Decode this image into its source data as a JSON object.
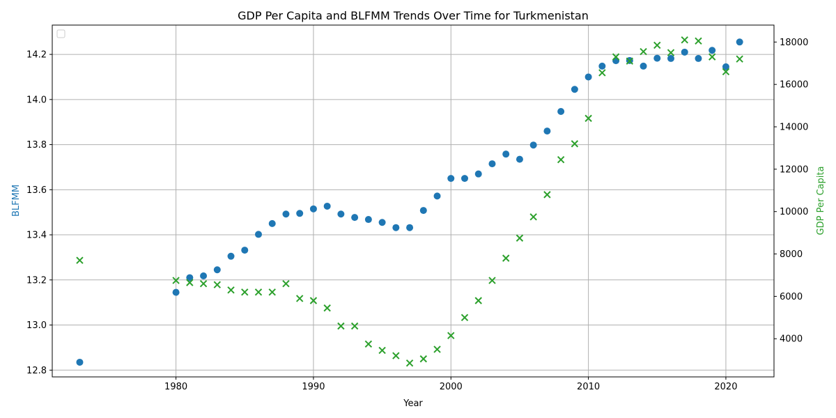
{
  "chart_data": {
    "type": "scatter",
    "title": "GDP Per Capita and BLFMM Trends Over Time for Turkmenistan",
    "xlabel": "Year",
    "ylabel_left": "BLFMM",
    "ylabel_right": "GDP Per Capita",
    "xlim": [
      1971,
      2023.5
    ],
    "ylim_left": [
      12.77,
      14.33
    ],
    "ylim_right": [
      2200,
      18800
    ],
    "x_ticks": [
      1980,
      1990,
      2000,
      2010,
      2020
    ],
    "y_ticks_left": [
      12.8,
      13.0,
      13.2,
      13.4,
      13.6,
      13.8,
      14.0,
      14.2
    ],
    "y_ticks_right": [
      4000,
      6000,
      8000,
      10000,
      12000,
      14000,
      16000,
      18000
    ],
    "grid": true,
    "legend": "top-left (empty)",
    "colors": {
      "blfmm": "#1f77b4",
      "gdp": "#2ca02c"
    },
    "series": [
      {
        "axis": "left",
        "marker": "circle",
        "x": [
          1973,
          1980,
          1981,
          1982,
          1983,
          1984,
          1985,
          1986,
          1987,
          1988,
          1989,
          1990,
          1991,
          1992,
          1993,
          1994,
          1995,
          1996,
          1997,
          1998,
          1999,
          2000,
          2001,
          2002,
          2003,
          2004,
          2005,
          2006,
          2007,
          2008,
          2009,
          2010,
          2011,
          2012,
          2013,
          2014,
          2015,
          2016,
          2017,
          2018,
          2019,
          2020,
          2021
        ],
        "values": [
          12.835,
          13.145,
          13.21,
          13.218,
          13.245,
          13.305,
          13.332,
          13.402,
          13.45,
          13.492,
          13.495,
          13.515,
          13.527,
          13.492,
          13.477,
          13.468,
          13.455,
          13.432,
          13.432,
          13.508,
          13.572,
          13.65,
          13.65,
          13.67,
          13.715,
          13.758,
          13.735,
          13.798,
          13.86,
          13.947,
          14.045,
          14.1,
          14.148,
          14.172,
          14.173,
          14.148,
          14.183,
          14.182,
          14.21,
          14.182,
          14.218,
          14.145,
          14.255
        ]
      },
      {
        "axis": "right",
        "marker": "x",
        "x": [
          1973,
          1980,
          1981,
          1982,
          1983,
          1984,
          1985,
          1986,
          1987,
          1988,
          1989,
          1990,
          1991,
          1992,
          1993,
          1994,
          1995,
          1996,
          1997,
          1998,
          1999,
          2000,
          2001,
          2002,
          2003,
          2004,
          2005,
          2006,
          2007,
          2008,
          2009,
          2010,
          2011,
          2012,
          2013,
          2014,
          2015,
          2016,
          2017,
          2018,
          2019,
          2020,
          2021
        ],
        "values": [
          7700,
          6750,
          6650,
          6600,
          6550,
          6300,
          6200,
          6200,
          6200,
          6600,
          5900,
          5800,
          5450,
          4600,
          4600,
          3750,
          3450,
          3200,
          2850,
          3050,
          3500,
          4150,
          5000,
          5800,
          6750,
          7800,
          8750,
          9750,
          10800,
          12450,
          13200,
          14400,
          16550,
          17300,
          17100,
          17550,
          17850,
          17500,
          18100,
          18050,
          17300,
          16600,
          17200
        ]
      }
    ]
  }
}
